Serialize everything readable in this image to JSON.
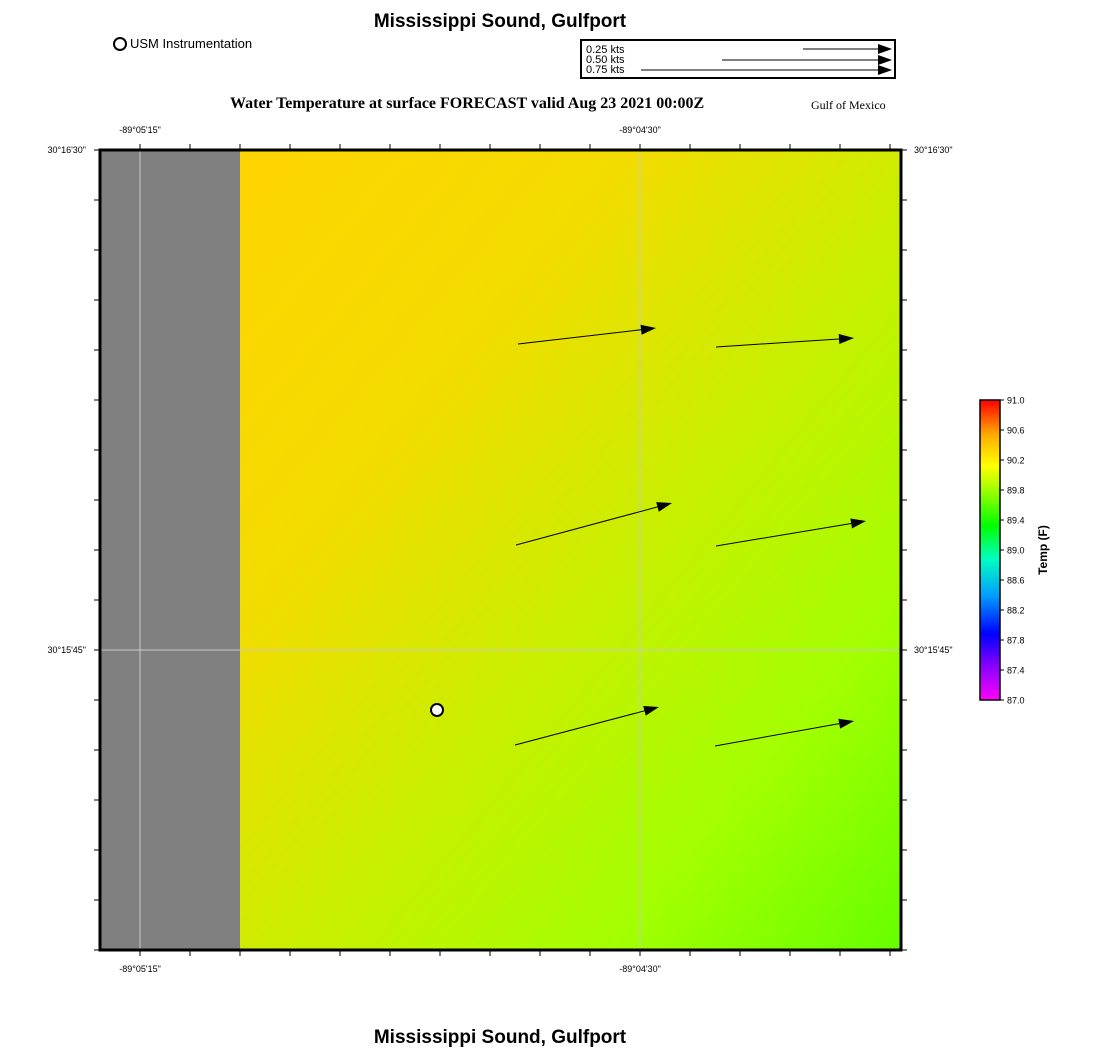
{
  "title": "Mississippi Sound, Gulfport",
  "subtitle": "Water Temperature at surface FORECAST valid Aug 23 2021 00:00Z",
  "region_label": "Gulf of Mexico",
  "legend": {
    "instrument_label": "USM Instrumentation"
  },
  "vector_scale": {
    "labels": [
      "0.25 kts",
      "0.50 kts",
      "0.75 kts"
    ]
  },
  "axes": {
    "lon_labels": [
      "-89°05'15\"",
      "-89°04'30\""
    ],
    "lat_labels": [
      "30°16'30\"",
      "30°15'45\""
    ]
  },
  "colorbar": {
    "title": "Temp (F)",
    "min": 87.0,
    "max": 91.0,
    "ticks": [
      "91.0",
      "90.6",
      "90.2",
      "89.8",
      "89.4",
      "89.0",
      "88.6",
      "88.2",
      "87.8",
      "87.4",
      "87.0"
    ]
  },
  "colors": {
    "land": "#808080",
    "water_north": "#ffd400",
    "water_southeast": "#66ff00"
  }
}
